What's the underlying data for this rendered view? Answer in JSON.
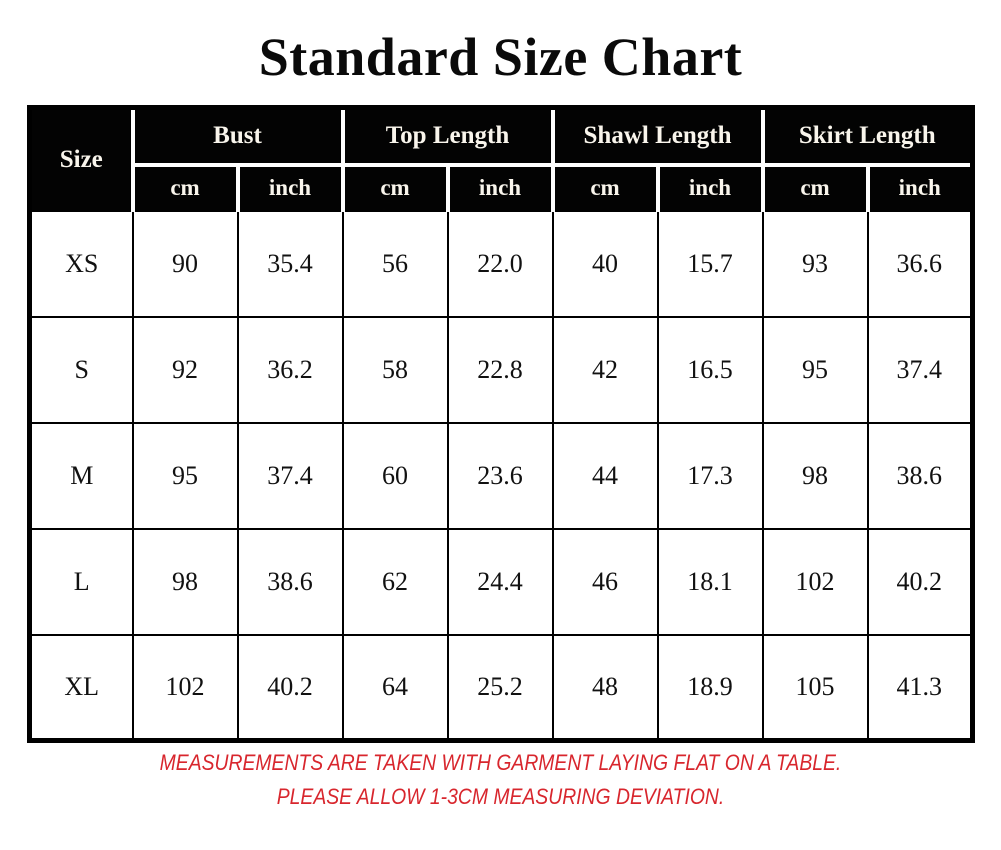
{
  "title": "Standard Size Chart",
  "chart_data": {
    "type": "table",
    "title": "Standard Size Chart",
    "corner_header": "Size",
    "column_groups": [
      "Bust",
      "Top Length",
      "Shawl Length",
      "Skirt Length"
    ],
    "unit_subheaders": [
      "cm",
      "inch",
      "cm",
      "inch",
      "cm",
      "inch",
      "cm",
      "inch"
    ],
    "rows": [
      {
        "size": "XS",
        "values": [
          "90",
          "35.4",
          "56",
          "22.0",
          "40",
          "15.7",
          "93",
          "36.6"
        ]
      },
      {
        "size": "S",
        "values": [
          "92",
          "36.2",
          "58",
          "22.8",
          "42",
          "16.5",
          "95",
          "37.4"
        ]
      },
      {
        "size": "M",
        "values": [
          "95",
          "37.4",
          "60",
          "23.6",
          "44",
          "17.3",
          "98",
          "38.6"
        ]
      },
      {
        "size": "L",
        "values": [
          "98",
          "38.6",
          "62",
          "24.4",
          "46",
          "18.1",
          "102",
          "40.2"
        ]
      },
      {
        "size": "XL",
        "values": [
          "102",
          "40.2",
          "64",
          "25.2",
          "48",
          "18.9",
          "105",
          "41.3"
        ]
      }
    ]
  },
  "footer": {
    "line1": "MEASUREMENTS ARE TAKEN WITH GARMENT LAYING FLAT ON A TABLE.",
    "line2": "PLEASE ALLOW 1-3CM MEASURING DEVIATION."
  },
  "colors": {
    "header_background": "#030303",
    "header_text": "#f9f5ec",
    "body_text": "#111111",
    "border": "#000000",
    "note_red": "#d8262d",
    "page_background": "#ffffff"
  }
}
